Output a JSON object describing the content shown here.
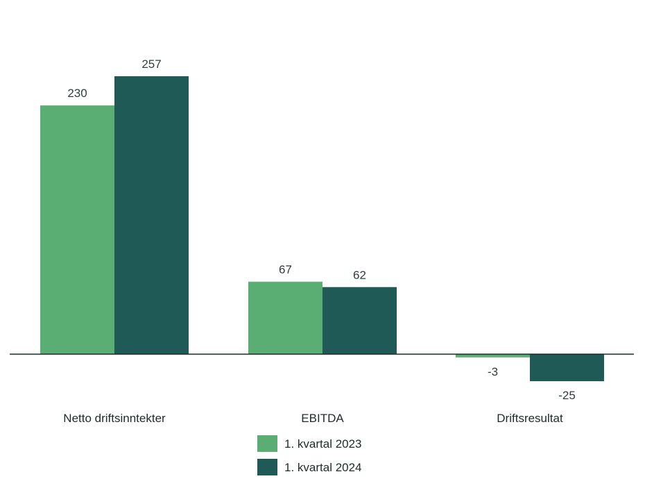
{
  "chart_data": {
    "type": "bar",
    "categories": [
      "Netto driftsinntekter",
      "EBITDA",
      "Driftsresultat"
    ],
    "series": [
      {
        "name": "1. kvartal 2023",
        "values": [
          230,
          67,
          -3
        ],
        "labels": [
          "230",
          "67",
          "-3"
        ],
        "color": "#5aae74"
      },
      {
        "name": "1. kvartal 2024",
        "values": [
          257,
          62,
          -25
        ],
        "labels": [
          "257",
          "62",
          "-25"
        ],
        "color": "#1f5a57"
      }
    ],
    "xlabel": "",
    "ylabel": "",
    "ylim": [
      -25,
      257
    ],
    "grid": false,
    "legend_position": "bottom-center"
  }
}
